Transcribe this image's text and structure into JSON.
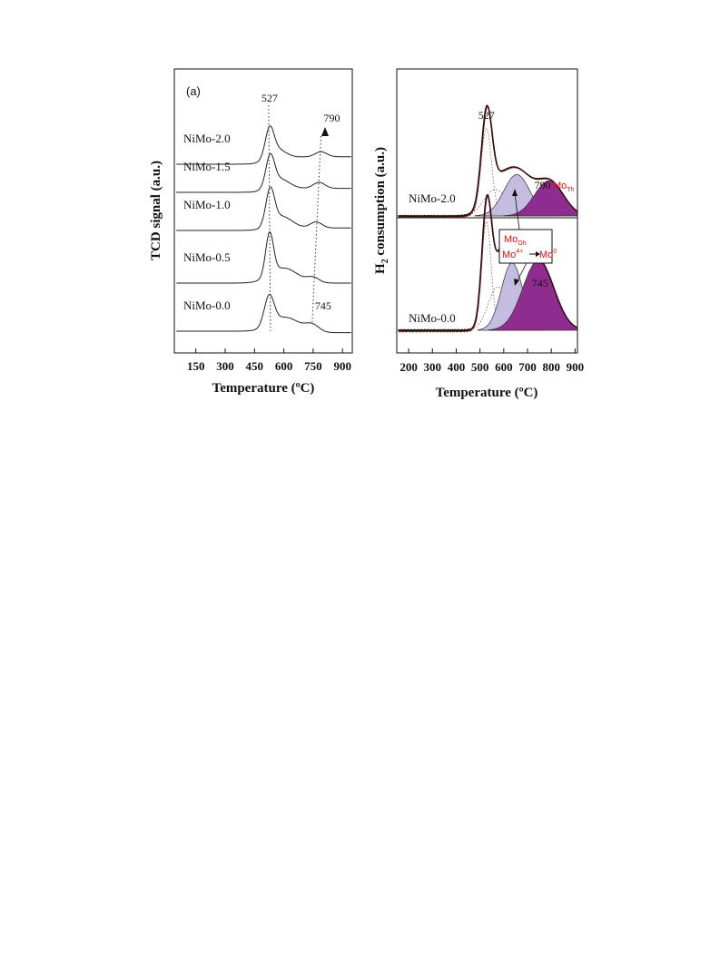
{
  "chart_data": [
    {
      "type": "line",
      "panel_tag": "(a)",
      "xlabel": "Temperature (ºC)",
      "ylabel": "TCD signal (a.u.)",
      "xlim": [
        40,
        950
      ],
      "xticks": [
        150,
        300,
        450,
        600,
        750,
        900
      ],
      "grid": false,
      "series": [
        {
          "name": "NiMo-2.0",
          "peaks": [
            {
              "center": 527,
              "height": 0.55,
              "width": 22
            },
            {
              "center": 560,
              "height": 0.22,
              "width": 45
            },
            {
              "center": 790,
              "height": 0.1,
              "width": 30
            }
          ],
          "base_high": 0.15,
          "offset": 4
        },
        {
          "name": "NiMo-1.5",
          "peaks": [
            {
              "center": 530,
              "height": 0.6,
              "width": 22
            },
            {
              "center": 575,
              "height": 0.22,
              "width": 50
            },
            {
              "center": 780,
              "height": 0.12,
              "width": 30
            }
          ],
          "base_high": 0.08,
          "offset": 3
        },
        {
          "name": "NiMo-1.0",
          "peaks": [
            {
              "center": 530,
              "height": 0.7,
              "width": 22
            },
            {
              "center": 585,
              "height": 0.25,
              "width": 55
            },
            {
              "center": 765,
              "height": 0.12,
              "width": 30
            }
          ],
          "base_high": 0.05,
          "offset": 2
        },
        {
          "name": "NiMo-0.5",
          "peaks": [
            {
              "center": 527,
              "height": 0.85,
              "width": 20
            },
            {
              "center": 600,
              "height": 0.3,
              "width": 70
            },
            {
              "center": 750,
              "height": 0.1,
              "width": 30
            }
          ],
          "base_high": 0.0,
          "offset": 1
        },
        {
          "name": "NiMo-0.0",
          "peaks": [
            {
              "center": 525,
              "height": 0.6,
              "width": 25
            },
            {
              "center": 610,
              "height": 0.3,
              "width": 70
            },
            {
              "center": 745,
              "height": 0.14,
              "width": 35
            }
          ],
          "base_high": -0.03,
          "offset": 0
        }
      ],
      "annotations": [
        {
          "text": "527",
          "x": 527
        },
        {
          "text": "790",
          "x": 790
        },
        {
          "text": "745",
          "x": 745
        }
      ]
    },
    {
      "type": "area",
      "xlabel": "Temperature (ºC)",
      "ylabel_main": "H",
      "ylabel_sub": "2",
      "ylabel_rest": " consumption (a.u.)",
      "xlim": [
        150,
        910
      ],
      "xticks": [
        200,
        300,
        400,
        500,
        600,
        700,
        800,
        900
      ],
      "grid": false,
      "series": [
        {
          "name": "NiMo-2.0",
          "offset": 1,
          "components": [
            {
              "center": 527,
              "height": 1.0,
              "width": 22,
              "fill": "none"
            },
            {
              "center": 565,
              "height": 0.3,
              "width": 48,
              "fill": "none"
            },
            {
              "center": 655,
              "height": 0.47,
              "width": 55,
              "fill": "#c4bde0"
            },
            {
              "center": 790,
              "height": 0.4,
              "width": 60,
              "fill": "#8f2c8f"
            }
          ]
        },
        {
          "name": "NiMo-0.0",
          "offset": 0,
          "components": [
            {
              "center": 527,
              "height": 1.0,
              "width": 20,
              "fill": "none"
            },
            {
              "center": 575,
              "height": 0.4,
              "width": 40,
              "fill": "none"
            },
            {
              "center": 635,
              "height": 0.62,
              "width": 45,
              "fill": "#c4bde0"
            },
            {
              "center": 745,
              "height": 0.64,
              "width": 65,
              "fill": "#8f2c8f"
            }
          ]
        }
      ],
      "annotations": [
        {
          "text": "527",
          "x": 527
        },
        {
          "text": "790",
          "x": 790
        },
        {
          "text": "745",
          "x": 745
        }
      ],
      "red_labels": {
        "mo_th": "Mo",
        "mo_th_sub": "Th",
        "mo_oh": "Mo",
        "mo_oh_sub": "Oh",
        "mo4": "Mo",
        "mo4_sup": "4+",
        "mo0": "Mo",
        "mo0_sup": "0"
      },
      "colors": {
        "envelope": "#8b1010",
        "mid": "#c4bde0",
        "high": "#8f2c8f"
      }
    }
  ]
}
